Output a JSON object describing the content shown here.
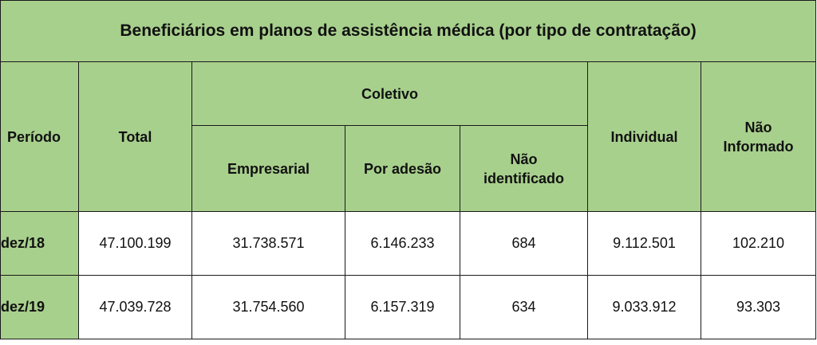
{
  "table": {
    "title": "Beneficiários em planos de assistência médica (por tipo de contratação)",
    "headers": {
      "periodo": "Período",
      "total": "Total",
      "coletivo": "Coletivo",
      "empresarial": "Empresarial",
      "por_adesao": "Por adesão",
      "nao_identificado_1": "Não",
      "nao_identificado_2": "identificado",
      "individual": "Individual",
      "nao_informado_1": "Não",
      "nao_informado_2": "Informado"
    },
    "rows": [
      {
        "periodo": "dez/18",
        "total": "47.100.199",
        "empresarial": "31.738.571",
        "por_adesao": "6.146.233",
        "nao_identificado": "684",
        "individual": "9.112.501",
        "nao_informado": "102.210"
      },
      {
        "periodo": "dez/19",
        "total": "47.039.728",
        "empresarial": "31.754.560",
        "por_adesao": "6.157.319",
        "nao_identificado": "634",
        "individual": "9.033.912",
        "nao_informado": "93.303"
      }
    ]
  },
  "colors": {
    "header_green": "#a8d08d",
    "border": "#1a1a1a",
    "cell_background": "#ffffff"
  }
}
